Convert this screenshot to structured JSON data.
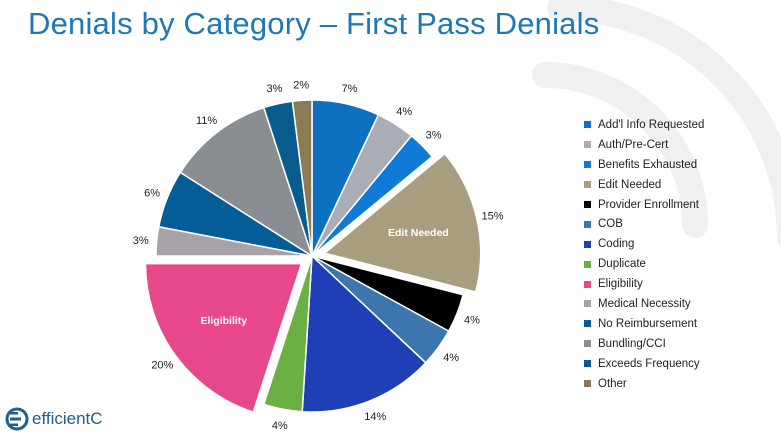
{
  "slide": {
    "title": "Denials by Category – First Pass Denials",
    "logo_text": "efficientC"
  },
  "colors": {
    "title": "#1f77b4",
    "logo": "#1f5f8b"
  },
  "chart_data": {
    "type": "pie",
    "title": "",
    "legend_position": "right",
    "slices": [
      {
        "name": "Add'l Info Requested",
        "value": 7,
        "label": "7%",
        "color": "#0d70c0",
        "exploded": false
      },
      {
        "name": "Auth/Pre-Cert",
        "value": 4,
        "label": "4%",
        "color": "#a9aeb6",
        "exploded": false
      },
      {
        "name": "Benefits Exhausted",
        "value": 3,
        "label": "3%",
        "color": "#0f7bd6",
        "exploded": false
      },
      {
        "name": "Edit Needed",
        "value": 15,
        "label": "15%",
        "color": "#a99e7f",
        "exploded": true,
        "inner_label": "Edit Needed"
      },
      {
        "name": "Provider Enrollment",
        "value": 4,
        "label": "4%",
        "color": "#000000",
        "exploded": false
      },
      {
        "name": "COB",
        "value": 4,
        "label": "4%",
        "color": "#3b77ae",
        "exploded": false
      },
      {
        "name": "Coding",
        "value": 14,
        "label": "14%",
        "color": "#1f3fb7",
        "exploded": false
      },
      {
        "name": "Duplicate",
        "value": 4,
        "label": "4%",
        "color": "#6ab045",
        "exploded": false
      },
      {
        "name": "Eligibility",
        "value": 20,
        "label": "20%",
        "color": "#e6488a",
        "exploded": true,
        "inner_label": "Eligibility"
      },
      {
        "name": "Medical Necessity",
        "value": 3,
        "label": "3%",
        "color": "#a8a2a8",
        "exploded": false
      },
      {
        "name": "No Reimbursement",
        "value": 6,
        "label": "6%",
        "color": "#055d97",
        "exploded": false
      },
      {
        "name": "Bundling/CCI",
        "value": 11,
        "label": "11%",
        "color": "#8a8d92",
        "exploded": false
      },
      {
        "name": "Exceeds Frequency",
        "value": 3,
        "label": "3%",
        "color": "#0a5c8f",
        "exploded": false
      },
      {
        "name": "Other",
        "value": 2,
        "label": "2%",
        "color": "#8a7a55",
        "exploded": false
      }
    ]
  }
}
